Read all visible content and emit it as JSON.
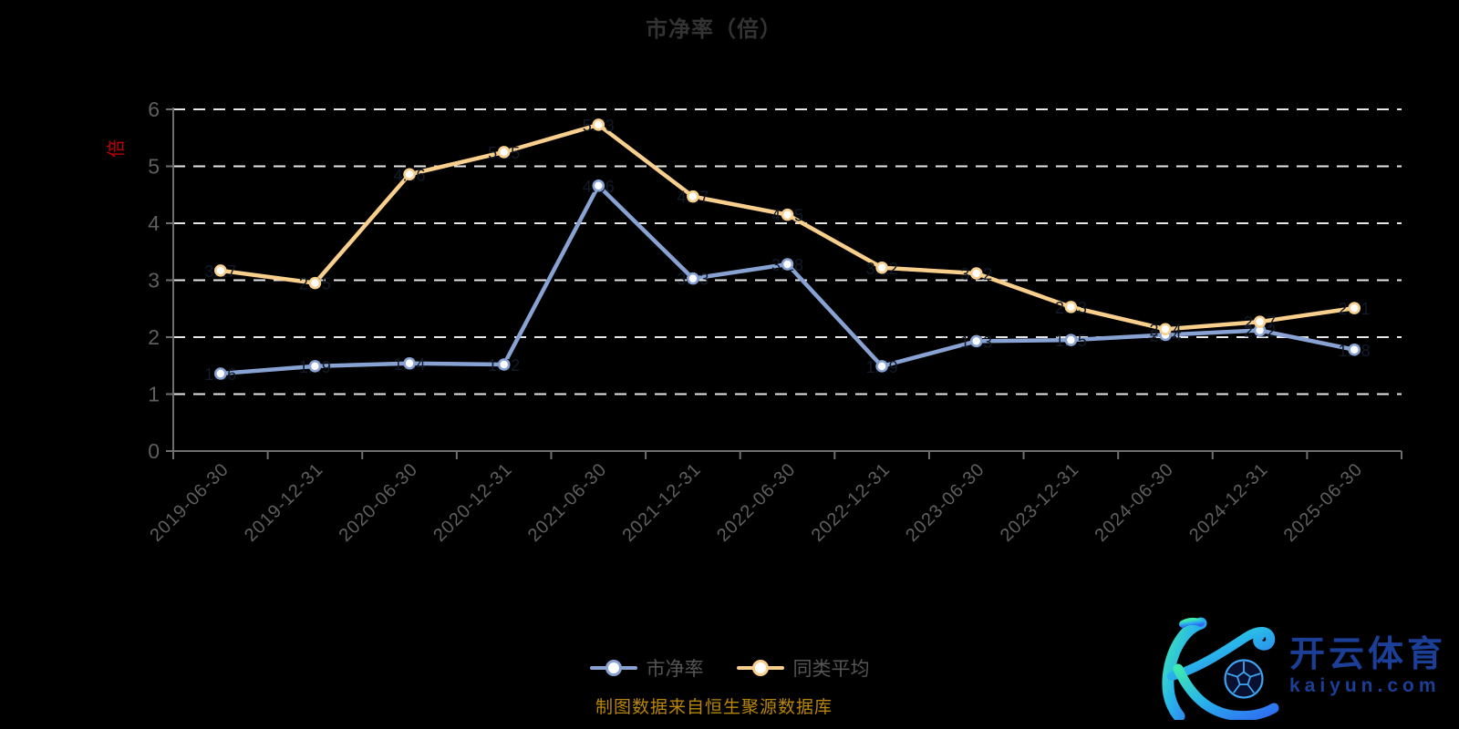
{
  "title": "市净率（倍）",
  "caption": "制图数据来自恒生聚源数据库",
  "colors": {
    "background": "#000000",
    "title": "#333333",
    "axis": "#6e6e6e",
    "grid": "#e6e6e6",
    "tick_label": "#5f5f5f",
    "y_axis_name": "#c00000",
    "series_blue": "#88a3d3",
    "series_yellow": "#f8cf8c",
    "point_label": "#131b29",
    "legend_text": "#555555",
    "caption_text": "#b8860b",
    "logo_blue": "#1b3e96"
  },
  "chart_data": {
    "type": "line",
    "title": "市净率（倍）",
    "ylabel": "倍",
    "xlabel": "",
    "ylim": [
      0,
      6
    ],
    "y_ticks": [
      0,
      1,
      2,
      3,
      4,
      5,
      6
    ],
    "grid": "horizontal dashed white lines",
    "legend_position": "bottom center",
    "categories": [
      "2019-06-30",
      "2019-12-31",
      "2020-06-30",
      "2020-12-31",
      "2021-06-30",
      "2021-12-31",
      "2022-06-30",
      "2022-12-31",
      "2023-06-30",
      "2023-12-31",
      "2024-06-30",
      "2024-12-31",
      "2025-06-30"
    ],
    "series": [
      {
        "name": "市净率",
        "color": "#88a3d3",
        "values": [
          1.36,
          1.49,
          1.54,
          1.52,
          4.66,
          3.03,
          3.28,
          1.49,
          1.93,
          1.95,
          2.04,
          2.12,
          1.78
        ]
      },
      {
        "name": "同类平均",
        "color": "#f8cf8c",
        "values": [
          3.17,
          2.95,
          4.86,
          5.25,
          5.73,
          4.47,
          4.15,
          3.22,
          3.12,
          2.53,
          2.14,
          2.27,
          2.51
        ]
      }
    ]
  },
  "legend": {
    "item1": "市净率",
    "item2": "同类平均"
  },
  "logo": {
    "brand": "开云体育",
    "domain": "kaiyun.com"
  }
}
